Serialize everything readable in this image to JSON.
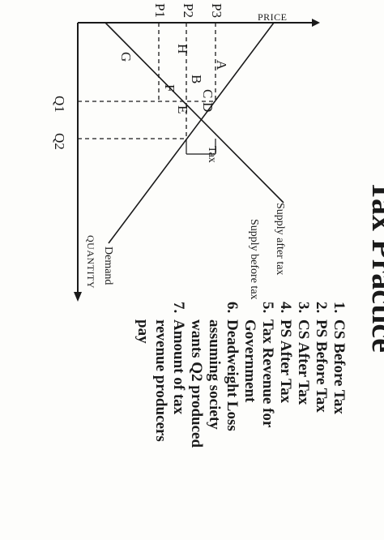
{
  "title": "Tax Practice",
  "questions": [
    {
      "num": "1.",
      "lines": [
        "CS Before Tax"
      ]
    },
    {
      "num": "2.",
      "lines": [
        "PS Before Tax"
      ]
    },
    {
      "num": "3.",
      "lines": [
        "CS After Tax"
      ]
    },
    {
      "num": "4.",
      "lines": [
        "PS After Tax"
      ]
    },
    {
      "num": "5.",
      "lines": [
        "Tax Revenue for",
        "Government"
      ]
    },
    {
      "num": "6.",
      "lines": [
        "Deadweight Loss",
        "assuming society",
        "wants Q2 produced"
      ]
    },
    {
      "num": "7.",
      "lines": [
        "Amount of tax",
        "revenue producers",
        "pay"
      ]
    }
  ],
  "diagram": {
    "price_axis_label": "PRICE",
    "quantity_axis_label": "QUANTITY",
    "price_labels": [
      "P3",
      "P2",
      "P1"
    ],
    "quantity_labels": [
      "Q1",
      "Q2"
    ],
    "curve_labels": {
      "demand": "Demand",
      "supply_before_tax": "Supply before tax",
      "supply_after_tax": "Supply after tax"
    },
    "tax_label": "Tax",
    "area_labels": [
      "A",
      "B",
      "C",
      "D",
      "E",
      "F",
      "G",
      "H"
    ]
  }
}
